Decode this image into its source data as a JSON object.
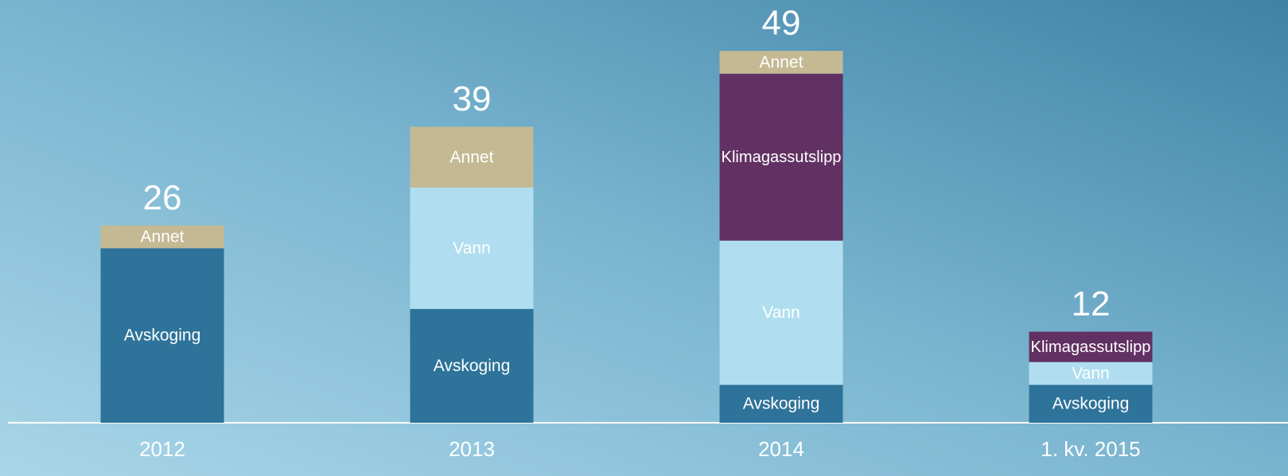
{
  "chart_data": {
    "type": "stacked_bar",
    "categories": [
      "2012",
      "2013",
      "2014",
      "1. kv. 2015"
    ],
    "series": [
      {
        "name": "Avskoging",
        "color": "#2e7399",
        "values": [
          23,
          15,
          5,
          5
        ]
      },
      {
        "name": "Vann",
        "color": "#b0def0",
        "values": [
          null,
          16,
          19,
          3
        ]
      },
      {
        "name": "Klimagassutslipp",
        "color": "#623163",
        "values": [
          null,
          null,
          22,
          4
        ]
      },
      {
        "name": "Annet",
        "color": "#c4b993",
        "values": [
          3,
          8,
          3,
          null
        ]
      }
    ],
    "totals": [
      26,
      39,
      49,
      12
    ]
  }
}
